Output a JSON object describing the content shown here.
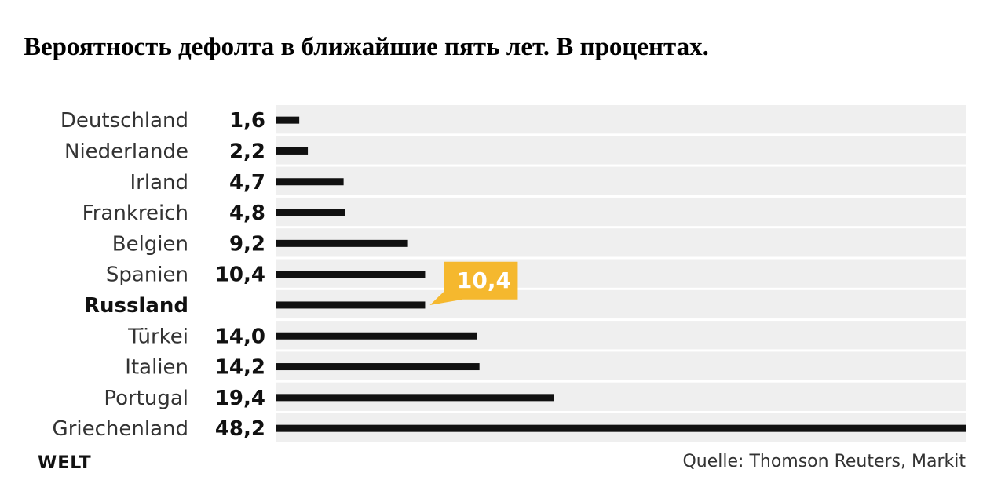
{
  "title": "Вероятность дефолта в ближайшие пять лет. В процентах.",
  "source": "Quelle: Thomson Reuters, Markit",
  "logo": "WELT",
  "colors": {
    "bar": "#111111",
    "row_bg": "#efefef",
    "highlight": "#f5b82e",
    "highlight_text": "#ffffff"
  },
  "chart_data": {
    "type": "bar",
    "orientation": "horizontal",
    "categories": [
      "Deutschland",
      "Niederlande",
      "Irland",
      "Frankreich",
      "Belgien",
      "Spanien",
      "Russland",
      "Türkei",
      "Italien",
      "Portugal",
      "Griechenland"
    ],
    "value_labels": [
      "1,6",
      "2,2",
      "4,7",
      "4,8",
      "9,2",
      "10,4",
      "",
      "14,0",
      "14,2",
      "19,4",
      "48,2"
    ],
    "values": [
      1.6,
      2.2,
      4.7,
      4.8,
      9.2,
      10.4,
      10.4,
      14.0,
      14.2,
      19.4,
      48.2
    ],
    "highlight": {
      "category": "Russland",
      "label": "10,4"
    },
    "xlim": [
      0,
      48.2
    ],
    "grid": false
  }
}
